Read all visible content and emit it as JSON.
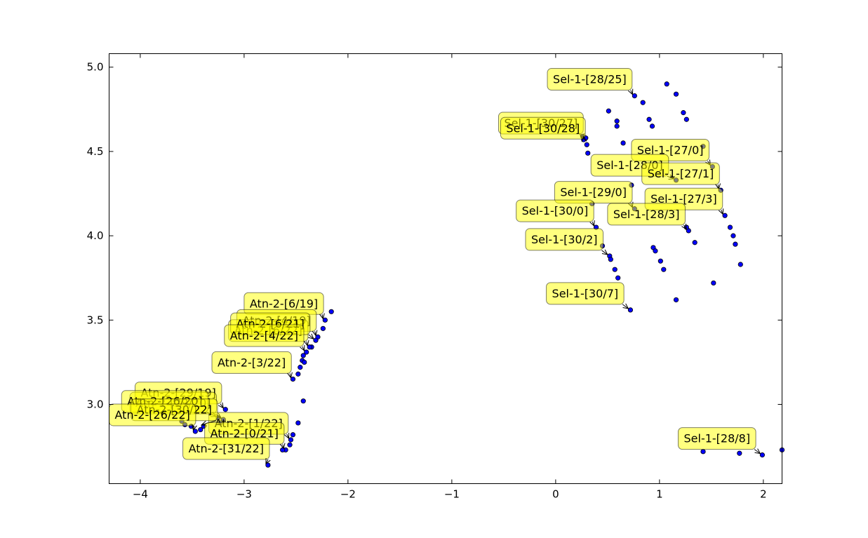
{
  "chart_data": {
    "type": "scatter",
    "xlim": [
      -4.3,
      2.18
    ],
    "ylim": [
      2.53,
      5.08
    ],
    "x_ticks": [
      -4,
      -3,
      -2,
      -1,
      0,
      1,
      2
    ],
    "y_ticks": [
      3.0,
      3.5,
      4.0,
      4.5,
      5.0
    ],
    "x_tick_labels": [
      "−4",
      "−3",
      "−2",
      "−1",
      "0",
      "1",
      "2"
    ],
    "y_tick_labels": [
      "3.0",
      "3.5",
      "4.0",
      "4.5",
      "5.0"
    ],
    "grid": false,
    "marker_color": "#0000ff",
    "annotation_color": "#ffff00",
    "points": [
      [
        1.07,
        4.9
      ],
      [
        1.16,
        4.84
      ],
      [
        0.76,
        4.83
      ],
      [
        0.84,
        4.79
      ],
      [
        0.51,
        4.74
      ],
      [
        1.23,
        4.73
      ],
      [
        0.59,
        4.68
      ],
      [
        1.26,
        4.69
      ],
      [
        0.9,
        4.69
      ],
      [
        0.59,
        4.65
      ],
      [
        0.93,
        4.65
      ],
      [
        0.26,
        4.59
      ],
      [
        0.27,
        4.57
      ],
      [
        0.29,
        4.58
      ],
      [
        0.3,
        4.54
      ],
      [
        0.65,
        4.55
      ],
      [
        0.31,
        4.49
      ],
      [
        1.42,
        4.53
      ],
      [
        1.51,
        4.41
      ],
      [
        1.16,
        4.33
      ],
      [
        0.73,
        4.3
      ],
      [
        1.59,
        4.27
      ],
      [
        0.35,
        4.19
      ],
      [
        0.76,
        4.16
      ],
      [
        1.63,
        4.12
      ],
      [
        1.68,
        4.05
      ],
      [
        1.71,
        4.0
      ],
      [
        1.73,
        3.95
      ],
      [
        1.78,
        3.83
      ],
      [
        0.39,
        4.05
      ],
      [
        1.28,
        4.03
      ],
      [
        1.26,
        4.05
      ],
      [
        1.34,
        3.96
      ],
      [
        0.45,
        3.94
      ],
      [
        0.52,
        3.88
      ],
      [
        0.53,
        3.86
      ],
      [
        0.57,
        3.8
      ],
      [
        0.6,
        3.75
      ],
      [
        0.94,
        3.93
      ],
      [
        0.96,
        3.91
      ],
      [
        1.01,
        3.85
      ],
      [
        1.04,
        3.8
      ],
      [
        1.52,
        3.72
      ],
      [
        1.16,
        3.62
      ],
      [
        0.72,
        3.56
      ],
      [
        1.42,
        2.72
      ],
      [
        1.77,
        2.71
      ],
      [
        1.99,
        2.7
      ],
      [
        2.18,
        2.73
      ],
      [
        -2.16,
        3.55
      ],
      [
        -2.22,
        3.5
      ],
      [
        -2.24,
        3.45
      ],
      [
        -2.29,
        3.4
      ],
      [
        -2.31,
        3.38
      ],
      [
        -2.35,
        3.34
      ],
      [
        -2.37,
        3.34
      ],
      [
        -2.4,
        3.31
      ],
      [
        -2.43,
        3.29
      ],
      [
        -2.44,
        3.26
      ],
      [
        -2.42,
        3.25
      ],
      [
        -2.46,
        3.22
      ],
      [
        -2.48,
        3.18
      ],
      [
        -2.53,
        3.15
      ],
      [
        -2.43,
        3.02
      ],
      [
        -2.48,
        2.89
      ],
      [
        -2.53,
        2.82
      ],
      [
        -2.55,
        2.79
      ],
      [
        -2.56,
        2.76
      ],
      [
        -2.6,
        2.73
      ],
      [
        -2.63,
        2.73
      ],
      [
        -2.77,
        2.64
      ],
      [
        -3.18,
        2.97
      ],
      [
        -3.2,
        2.91
      ],
      [
        -3.23,
        2.89
      ],
      [
        -3.25,
        2.92
      ],
      [
        -3.39,
        2.87
      ],
      [
        -3.42,
        2.85
      ],
      [
        -3.47,
        2.84
      ],
      [
        -3.51,
        2.87
      ],
      [
        -3.57,
        2.88
      ],
      [
        -3.6,
        2.9
      ]
    ],
    "annotations": [
      {
        "label": "Sel-1-[28/25]",
        "x": 0.76,
        "y": 4.83,
        "tx": -0.08,
        "ty": 4.93
      },
      {
        "label": "Sel-1-[30/27]",
        "x": 0.27,
        "y": 4.57,
        "tx": -0.55,
        "ty": 4.67
      },
      {
        "label": "Sel-1-[30/28]",
        "x": 0.29,
        "y": 4.58,
        "tx": -0.53,
        "ty": 4.64
      },
      {
        "label": "Sel-1-[27/0]",
        "x": 1.51,
        "y": 4.41,
        "tx": 0.73,
        "ty": 4.51
      },
      {
        "label": "Sel-1-[28/0]",
        "x": 1.16,
        "y": 4.33,
        "tx": 0.34,
        "ty": 4.42
      },
      {
        "label": "Sel-1-[27/1]",
        "x": 1.59,
        "y": 4.27,
        "tx": 0.83,
        "ty": 4.37
      },
      {
        "label": "Sel-1-[29/0]",
        "x": 0.76,
        "y": 4.16,
        "tx": -0.01,
        "ty": 4.26
      },
      {
        "label": "Sel-1-[27/3]",
        "x": 1.63,
        "y": 4.12,
        "tx": 0.86,
        "ty": 4.22
      },
      {
        "label": "Sel-1-[30/0]",
        "x": 0.39,
        "y": 4.05,
        "tx": -0.38,
        "ty": 4.15
      },
      {
        "label": "Sel-1-[28/3]",
        "x": 1.28,
        "y": 4.03,
        "tx": 0.5,
        "ty": 4.13
      },
      {
        "label": "Sel-1-[30/2]",
        "x": 0.52,
        "y": 3.88,
        "tx": -0.29,
        "ty": 3.98
      },
      {
        "label": "Sel-1-[30/7]",
        "x": 0.72,
        "y": 3.56,
        "tx": -0.09,
        "ty": 3.66
      },
      {
        "label": "Sel-1-[28/8]",
        "x": 1.99,
        "y": 2.7,
        "tx": 1.18,
        "ty": 2.8
      },
      {
        "label": "Atn-2-[6/19]",
        "x": -2.22,
        "y": 3.5,
        "tx": -3.0,
        "ty": 3.6
      },
      {
        "label": "Atn-2-[4/19]",
        "x": -2.29,
        "y": 3.4,
        "tx": -3.07,
        "ty": 3.5
      },
      {
        "label": "Atn-2-[6/22]",
        "x": -2.37,
        "y": 3.34,
        "tx": -3.15,
        "ty": 3.44
      },
      {
        "label": "Atn-2-[6/21]",
        "x": -2.31,
        "y": 3.38,
        "tx": -3.13,
        "ty": 3.48
      },
      {
        "label": "Atn-2-[4/22]",
        "x": -2.4,
        "y": 3.31,
        "tx": -3.19,
        "ty": 3.41
      },
      {
        "label": "Atn-2-[3/22]",
        "x": -2.53,
        "y": 3.15,
        "tx": -3.31,
        "ty": 3.25
      },
      {
        "label": "Atn-2-[29/19]",
        "x": -3.18,
        "y": 2.97,
        "tx": -4.05,
        "ty": 3.07
      },
      {
        "label": "Atn-2-[29/20]",
        "x": -3.2,
        "y": 2.91,
        "tx": -4.1,
        "ty": 3.01
      },
      {
        "label": "Atn-2-[26/20]",
        "x": -3.25,
        "y": 2.92,
        "tx": -4.18,
        "ty": 3.02
      },
      {
        "label": "Atn-2-[1/22]",
        "x": -2.55,
        "y": 2.79,
        "tx": -3.34,
        "ty": 2.89
      },
      {
        "label": "Atn-2-[30/22]",
        "x": -3.39,
        "y": 2.87,
        "tx": -4.09,
        "ty": 2.97
      },
      {
        "label": "Atn-2-[0/21]",
        "x": -2.6,
        "y": 2.73,
        "tx": -3.38,
        "ty": 2.83
      },
      {
        "label": "Atn-2-[31/22]",
        "x": -2.77,
        "y": 2.64,
        "tx": -3.59,
        "ty": 2.74
      },
      {
        "label": "Atn-2-[26/22]",
        "x": -3.47,
        "y": 2.84,
        "tx": -4.3,
        "ty": 2.94
      }
    ]
  }
}
